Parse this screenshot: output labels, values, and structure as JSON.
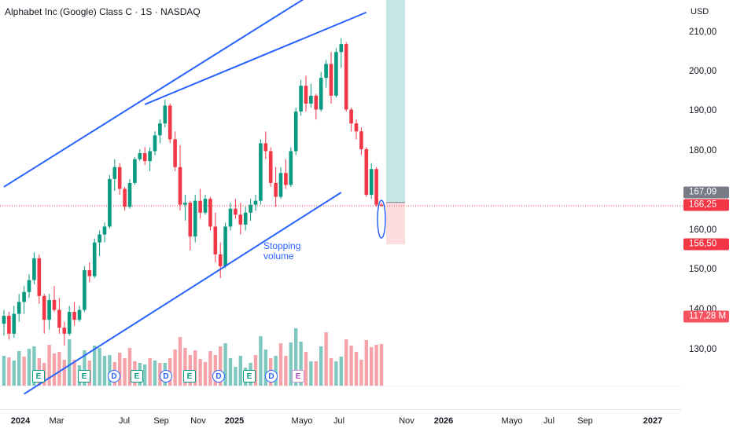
{
  "header": {
    "title": "Alphabet Inc (Google) Class C · 1S · NASDAQ",
    "currency": "USD"
  },
  "y_axis": {
    "ticks": [
      "210,00",
      "200,00",
      "190,00",
      "180,00",
      "160,00",
      "150,00",
      "140,00",
      "130,00"
    ],
    "badges": [
      {
        "label": "167,09",
        "color": "#787b86"
      },
      {
        "label": "166,25",
        "color": "#f23645"
      },
      {
        "label": "156,50",
        "color": "#f23645"
      },
      {
        "label": "117,28 M",
        "color": "#f7525f"
      }
    ]
  },
  "x_axis": {
    "ticks": [
      {
        "label": "2024",
        "bold": true
      },
      {
        "label": "Mar",
        "bold": false
      },
      {
        "label": "Jul",
        "bold": false
      },
      {
        "label": "Sep",
        "bold": false
      },
      {
        "label": "Nov",
        "bold": false
      },
      {
        "label": "2025",
        "bold": true
      },
      {
        "label": "Mayo",
        "bold": false
      },
      {
        "label": "Jul",
        "bold": false
      },
      {
        "label": "Nov",
        "bold": false
      },
      {
        "label": "2026",
        "bold": true
      },
      {
        "label": "Mayo",
        "bold": false
      },
      {
        "label": "Jul",
        "bold": false
      },
      {
        "label": "Sep",
        "bold": false
      },
      {
        "label": "2027",
        "bold": true
      }
    ]
  },
  "annotation": {
    "line1": "Stopping",
    "line2": "volume"
  },
  "events": [
    "E",
    "E",
    "D",
    "E",
    "D",
    "E",
    "D",
    "E",
    "D",
    "E"
  ],
  "colors": {
    "up": "#089981",
    "down": "#f23645",
    "vol_up": "#7fc8bf",
    "vol_down": "#f5a3a8",
    "trend": "#2962ff",
    "target_zone": "#b2dfdb",
    "stop_zone": "#fcd2d5"
  },
  "chart_data": {
    "type": "candlestick",
    "symbol": "Alphabet Inc (Google) Class C",
    "interval": "1S",
    "exchange": "NASDAQ",
    "ylim": [
      120,
      215
    ],
    "last_price": 166.25,
    "close_price": 167.09,
    "stop_level": 156.5,
    "last_volume": "117,28 M",
    "weekly_ohlc": [
      [
        136.5,
        140,
        133.5,
        138.5
      ],
      [
        138.5,
        139.5,
        132.5,
        134
      ],
      [
        134,
        141,
        133,
        139
      ],
      [
        139,
        144,
        137,
        142
      ],
      [
        142,
        146,
        139,
        144.5
      ],
      [
        144.5,
        149,
        143,
        147.5
      ],
      [
        147.5,
        154.5,
        146.5,
        153
      ],
      [
        153,
        154,
        141.5,
        143.5
      ],
      [
        143.5,
        144,
        134,
        137.5
      ],
      [
        137.5,
        144,
        135,
        142.5
      ],
      [
        142.5,
        146,
        139.5,
        140
      ],
      [
        140,
        143,
        134,
        135.5
      ],
      [
        135.5,
        137,
        131,
        134
      ],
      [
        134,
        141,
        133.5,
        139.5
      ],
      [
        139.5,
        142,
        136,
        137.5
      ],
      [
        137.5,
        141,
        137,
        140
      ],
      [
        140,
        151,
        139.5,
        150
      ],
      [
        150,
        152,
        147,
        148.5
      ],
      [
        148.5,
        158,
        148,
        157
      ],
      [
        157,
        160,
        153.5,
        159
      ],
      [
        159,
        162,
        157,
        161
      ],
      [
        161,
        174,
        160.5,
        173
      ],
      [
        173,
        178,
        170,
        176
      ],
      [
        176,
        177,
        169,
        170.5
      ],
      [
        170.5,
        171,
        165,
        166
      ],
      [
        166,
        173,
        165.5,
        172
      ],
      [
        172,
        178.5,
        171.5,
        178
      ],
      [
        178,
        180.5,
        177.5,
        179.5
      ],
      [
        179.5,
        181,
        176.5,
        177.5
      ],
      [
        177.5,
        181,
        175,
        180
      ],
      [
        180,
        185,
        179,
        184
      ],
      [
        184,
        188,
        182,
        187
      ],
      [
        187,
        193,
        186,
        191.5
      ],
      [
        191.5,
        192,
        182,
        183
      ],
      [
        183,
        185,
        175,
        176
      ],
      [
        176,
        181.5,
        165,
        166.5
      ],
      [
        166.5,
        169,
        162.5,
        167
      ],
      [
        167,
        167.5,
        155,
        158.5
      ],
      [
        158.5,
        169,
        157,
        167.5
      ],
      [
        167.5,
        170.5,
        163,
        164.5
      ],
      [
        164.5,
        169,
        164,
        168
      ],
      [
        168,
        168.5,
        160,
        161
      ],
      [
        161,
        164.5,
        152,
        154
      ],
      [
        154,
        157,
        148,
        151
      ],
      [
        151,
        162,
        150.5,
        161
      ],
      [
        161,
        167,
        160,
        165.5
      ],
      [
        165.5,
        168,
        163,
        164
      ],
      [
        164,
        167,
        159,
        161.5
      ],
      [
        161.5,
        166,
        160,
        164.5
      ],
      [
        164.5,
        168,
        162.5,
        166.5
      ],
      [
        166.5,
        169,
        165,
        167.5
      ],
      [
        167.5,
        183,
        166.5,
        182
      ],
      [
        182,
        185,
        178,
        180
      ],
      [
        180,
        181,
        171,
        172
      ],
      [
        172,
        176,
        166,
        168.5
      ],
      [
        168.5,
        176,
        168,
        174.5
      ],
      [
        174.5,
        178,
        170.5,
        171.5
      ],
      [
        171.5,
        181,
        171,
        180
      ],
      [
        180,
        191,
        179,
        190
      ],
      [
        190,
        198,
        189,
        196.5
      ],
      [
        196.5,
        199,
        190,
        192
      ],
      [
        192,
        197,
        191,
        194
      ],
      [
        194,
        194.5,
        188,
        190.5
      ],
      [
        190.5,
        200,
        190,
        198.5
      ],
      [
        198.5,
        203,
        196,
        202
      ],
      [
        202,
        205,
        192,
        194
      ],
      [
        194,
        206,
        193.5,
        205
      ],
      [
        205,
        208.5,
        201,
        207
      ],
      [
        207,
        207.5,
        190,
        190.5
      ],
      [
        190.5,
        191,
        185,
        187
      ],
      [
        187,
        188,
        183,
        185
      ],
      [
        185,
        186,
        179,
        180.5
      ],
      [
        180.5,
        181,
        168.5,
        169
      ],
      [
        169,
        177,
        168,
        175.5
      ],
      [
        175.5,
        176,
        166,
        166.5
      ],
      [
        166.5,
        167,
        166,
        166.25
      ]
    ],
    "weekly_volume": [
      [
        38,
        0
      ],
      [
        36,
        1
      ],
      [
        32,
        0
      ],
      [
        44,
        0
      ],
      [
        37,
        1
      ],
      [
        47,
        0
      ],
      [
        50,
        0
      ],
      [
        35,
        1
      ],
      [
        29,
        1
      ],
      [
        52,
        1
      ],
      [
        41,
        1
      ],
      [
        43,
        1
      ],
      [
        33,
        1
      ],
      [
        59,
        0
      ],
      [
        33,
        1
      ],
      [
        26,
        0
      ],
      [
        45,
        0
      ],
      [
        32,
        1
      ],
      [
        51,
        0
      ],
      [
        48,
        0
      ],
      [
        38,
        0
      ],
      [
        39,
        0
      ],
      [
        30,
        1
      ],
      [
        42,
        1
      ],
      [
        35,
        1
      ],
      [
        48,
        1
      ],
      [
        31,
        1
      ],
      [
        29,
        0
      ],
      [
        27,
        0
      ],
      [
        35,
        1
      ],
      [
        32,
        0
      ],
      [
        29,
        1
      ],
      [
        29,
        0
      ],
      [
        35,
        1
      ],
      [
        46,
        1
      ],
      [
        62,
        1
      ],
      [
        48,
        1
      ],
      [
        39,
        1
      ],
      [
        45,
        1
      ],
      [
        34,
        1
      ],
      [
        30,
        1
      ],
      [
        44,
        1
      ],
      [
        39,
        1
      ],
      [
        50,
        1
      ],
      [
        54,
        0
      ],
      [
        35,
        0
      ],
      [
        24,
        0
      ],
      [
        38,
        0
      ],
      [
        23,
        0
      ],
      [
        29,
        0
      ],
      [
        39,
        1
      ],
      [
        63,
        0
      ],
      [
        46,
        0
      ],
      [
        35,
        1
      ],
      [
        38,
        0
      ],
      [
        54,
        1
      ],
      [
        38,
        1
      ],
      [
        55,
        0
      ],
      [
        73,
        0
      ],
      [
        56,
        0
      ],
      [
        43,
        1
      ],
      [
        31,
        0
      ],
      [
        31,
        1
      ],
      [
        50,
        0
      ],
      [
        68,
        1
      ],
      [
        35,
        1
      ],
      [
        31,
        0
      ],
      [
        37,
        0
      ],
      [
        59,
        1
      ],
      [
        51,
        1
      ],
      [
        43,
        1
      ],
      [
        33,
        1
      ],
      [
        58,
        1
      ],
      [
        49,
        1
      ],
      [
        52,
        1
      ],
      [
        53,
        1
      ]
    ],
    "trendlines": [
      {
        "name": "upper_channel",
        "points": [
          [
            "2023-12-25",
            171
          ],
          [
            "2024-07-08",
            191.8
          ],
          [
            "2025-02-24",
            219.5
          ]
        ]
      },
      {
        "name": "resistance",
        "points": [
          [
            "2024-07-08",
            191.8
          ],
          [
            "2025-05-12",
            215
          ]
        ]
      },
      {
        "name": "support",
        "points": [
          [
            "2024-01-22",
            118.8
          ],
          [
            "2025-04-07",
            169.6
          ]
        ]
      }
    ],
    "zones": [
      {
        "name": "target",
        "from": 167.09,
        "to": 219
      },
      {
        "name": "stop",
        "from": 156.5,
        "to": 167.09
      }
    ]
  }
}
